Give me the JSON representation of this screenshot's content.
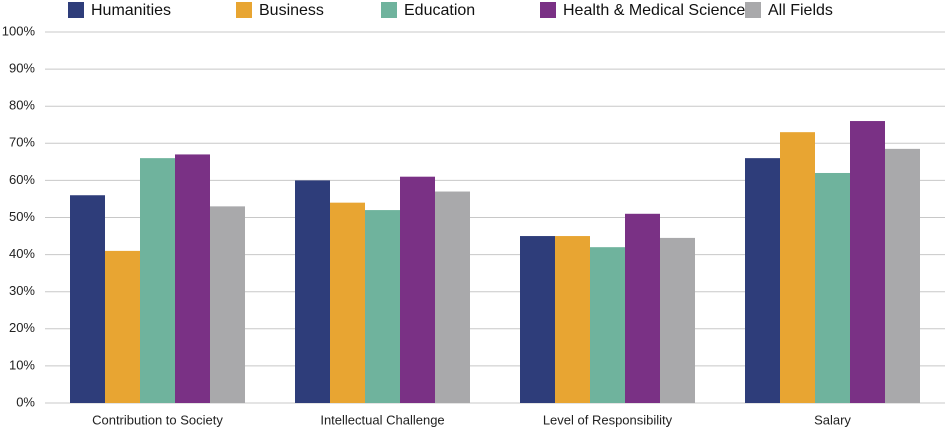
{
  "chart_data": {
    "type": "bar",
    "categories": [
      "Contribution to Society",
      "Intellectual Challenge",
      "Level of Responsibility",
      "Salary"
    ],
    "series": [
      {
        "name": "Humanities",
        "color": "#2e3d7a",
        "values": [
          56,
          60,
          45,
          66
        ]
      },
      {
        "name": "Business",
        "color": "#e8a532",
        "values": [
          41,
          54,
          45,
          73
        ]
      },
      {
        "name": "Education",
        "color": "#6fb39d",
        "values": [
          66,
          52,
          42,
          62
        ]
      },
      {
        "name": "Health & Medical Sciences",
        "color": "#7a3185",
        "values": [
          67,
          61,
          51,
          76
        ]
      },
      {
        "name": "All Fields",
        "color": "#a9a9ab",
        "values": [
          53,
          57,
          44.5,
          68.5
        ]
      }
    ],
    "ylim": [
      0,
      100
    ],
    "yticks": [
      {
        "value": 0,
        "label": "0%"
      },
      {
        "value": 10,
        "label": "10%"
      },
      {
        "value": 20,
        "label": "20%"
      },
      {
        "value": 30,
        "label": "30%"
      },
      {
        "value": 40,
        "label": "40%"
      },
      {
        "value": 50,
        "label": "50%"
      },
      {
        "value": 60,
        "label": "60%"
      },
      {
        "value": 70,
        "label": "70%"
      },
      {
        "value": 80,
        "label": "80%"
      },
      {
        "value": 90,
        "label": "90%"
      },
      {
        "value": 100,
        "label": "100%"
      }
    ],
    "grid": true,
    "legend": "top"
  }
}
